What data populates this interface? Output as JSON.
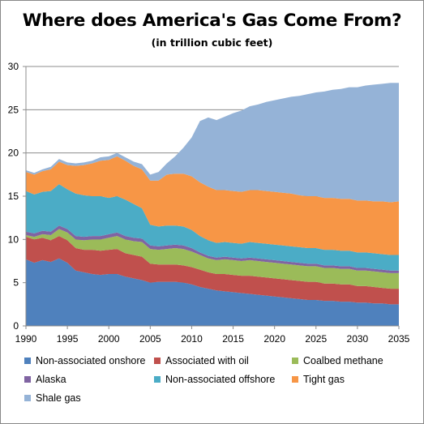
{
  "title": "Where does America's Gas Come From?",
  "subtitle": "(in trillion cubic feet)",
  "chart_data": {
    "type": "area",
    "stacked": true,
    "title": "Where does America's Gas Come From?",
    "subtitle": "(in trillion cubic feet)",
    "xlabel": "",
    "ylabel": "",
    "xlim": [
      1990,
      2035
    ],
    "ylim": [
      0,
      30
    ],
    "xticks": [
      1990,
      1995,
      2000,
      2005,
      2010,
      2015,
      2020,
      2025,
      2030,
      2035
    ],
    "yticks": [
      0,
      5,
      10,
      15,
      20,
      25,
      30
    ],
    "grid": "horizontal",
    "legend_position": "bottom",
    "x": [
      1990,
      1991,
      1992,
      1993,
      1994,
      1995,
      1996,
      1997,
      1998,
      1999,
      2000,
      2001,
      2002,
      2003,
      2004,
      2005,
      2006,
      2007,
      2008,
      2009,
      2010,
      2011,
      2012,
      2013,
      2014,
      2015,
      2016,
      2017,
      2018,
      2019,
      2020,
      2021,
      2022,
      2023,
      2024,
      2025,
      2026,
      2027,
      2028,
      2029,
      2030,
      2031,
      2032,
      2033,
      2034,
      2035
    ],
    "series": [
      {
        "name": "Non-associated onshore",
        "color": "#4F81BD",
        "values": [
          7.7,
          7.3,
          7.6,
          7.4,
          7.8,
          7.3,
          6.4,
          6.2,
          6.0,
          5.9,
          6.0,
          6.0,
          5.7,
          5.5,
          5.3,
          5.0,
          5.1,
          5.1,
          5.1,
          5.0,
          4.8,
          4.5,
          4.3,
          4.1,
          4.0,
          3.9,
          3.8,
          3.7,
          3.6,
          3.5,
          3.4,
          3.3,
          3.2,
          3.1,
          3.0,
          3.0,
          2.9,
          2.9,
          2.8,
          2.8,
          2.7,
          2.7,
          2.6,
          2.6,
          2.5,
          2.5
        ]
      },
      {
        "name": "Associated with oil",
        "color": "#C0504D",
        "values": [
          2.6,
          2.7,
          2.6,
          2.5,
          2.6,
          2.6,
          2.6,
          2.6,
          2.8,
          2.8,
          2.8,
          2.9,
          2.7,
          2.7,
          2.7,
          2.2,
          2.0,
          2.0,
          2.0,
          2.0,
          2.0,
          2.0,
          1.9,
          1.9,
          2.0,
          2.0,
          2.0,
          2.1,
          2.1,
          2.1,
          2.1,
          2.1,
          2.1,
          2.1,
          2.1,
          2.1,
          2.0,
          2.0,
          2.0,
          2.0,
          1.9,
          1.9,
          1.9,
          1.8,
          1.8,
          1.8
        ]
      },
      {
        "name": "Coalbed methane",
        "color": "#9BBB59",
        "values": [
          0.2,
          0.3,
          0.4,
          0.6,
          0.8,
          0.9,
          1.0,
          1.1,
          1.2,
          1.3,
          1.4,
          1.5,
          1.6,
          1.6,
          1.7,
          1.7,
          1.7,
          1.8,
          1.9,
          1.9,
          1.8,
          1.7,
          1.6,
          1.6,
          1.7,
          1.7,
          1.7,
          1.8,
          1.8,
          1.8,
          1.8,
          1.8,
          1.8,
          1.8,
          1.8,
          1.8,
          1.8,
          1.8,
          1.8,
          1.8,
          1.8,
          1.8,
          1.8,
          1.8,
          1.8,
          1.8
        ]
      },
      {
        "name": "Alaska",
        "color": "#8064A2",
        "values": [
          0.4,
          0.4,
          0.4,
          0.4,
          0.4,
          0.4,
          0.4,
          0.4,
          0.4,
          0.4,
          0.4,
          0.4,
          0.4,
          0.4,
          0.4,
          0.4,
          0.4,
          0.4,
          0.4,
          0.4,
          0.4,
          0.3,
          0.3,
          0.3,
          0.3,
          0.3,
          0.3,
          0.3,
          0.3,
          0.3,
          0.3,
          0.3,
          0.3,
          0.3,
          0.3,
          0.3,
          0.3,
          0.3,
          0.3,
          0.3,
          0.3,
          0.3,
          0.3,
          0.3,
          0.3,
          0.3
        ]
      },
      {
        "name": "Non-associated offshore",
        "color": "#4BACC6",
        "values": [
          4.7,
          4.5,
          4.5,
          4.7,
          4.8,
          4.6,
          4.9,
          4.8,
          4.6,
          4.6,
          4.2,
          4.2,
          4.2,
          3.9,
          3.5,
          2.4,
          2.3,
          2.3,
          2.2,
          2.2,
          2.1,
          1.9,
          1.8,
          1.7,
          1.7,
          1.7,
          1.7,
          1.8,
          1.8,
          1.8,
          1.8,
          1.8,
          1.8,
          1.8,
          1.8,
          1.8,
          1.8,
          1.8,
          1.8,
          1.8,
          1.8,
          1.8,
          1.8,
          1.8,
          1.8,
          1.8
        ]
      },
      {
        "name": "Tight gas",
        "color": "#F79646",
        "values": [
          2.2,
          2.3,
          2.4,
          2.5,
          2.6,
          2.8,
          3.2,
          3.5,
          3.8,
          4.1,
          4.4,
          4.6,
          4.5,
          4.4,
          4.5,
          5.1,
          5.3,
          5.9,
          6.0,
          6.1,
          6.2,
          6.2,
          6.2,
          6.1,
          6.0,
          6.0,
          6.0,
          6.0,
          6.1,
          6.1,
          6.1,
          6.1,
          6.1,
          6.0,
          6.0,
          6.0,
          6.0,
          6.0,
          6.0,
          6.0,
          6.0,
          6.0,
          6.0,
          6.1,
          6.1,
          6.2
        ]
      },
      {
        "name": "Shale gas",
        "color": "#95B3D7",
        "values": [
          0.2,
          0.2,
          0.2,
          0.3,
          0.3,
          0.3,
          0.3,
          0.3,
          0.3,
          0.4,
          0.4,
          0.4,
          0.4,
          0.5,
          0.6,
          0.7,
          1.0,
          1.3,
          2.0,
          3.0,
          4.5,
          7.1,
          8.0,
          8.1,
          8.5,
          9.0,
          9.4,
          9.7,
          9.9,
          10.3,
          10.6,
          10.9,
          11.2,
          11.5,
          11.8,
          12.0,
          12.3,
          12.5,
          12.7,
          12.9,
          13.1,
          13.3,
          13.5,
          13.6,
          13.8,
          13.7
        ]
      }
    ]
  }
}
